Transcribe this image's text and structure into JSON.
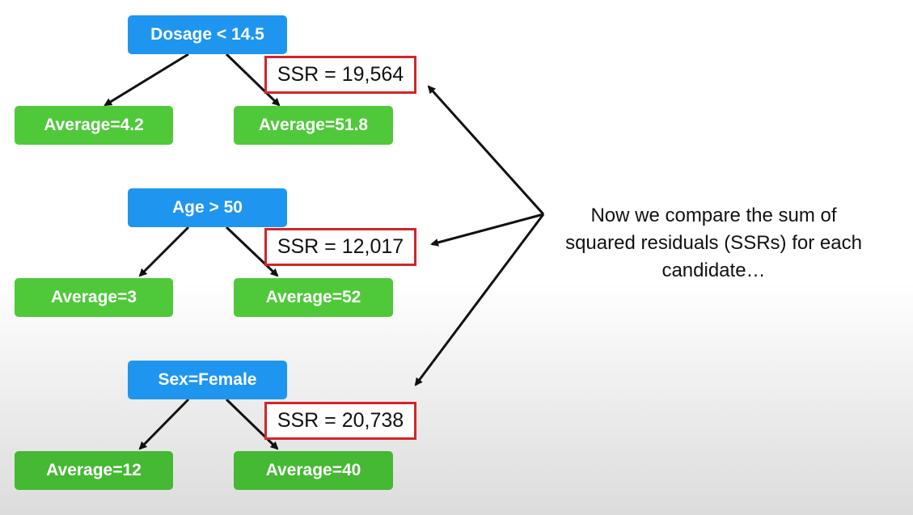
{
  "trees": [
    {
      "root": "Dosage < 14.5",
      "left_leaf": "Average=4.2",
      "right_leaf": "Average=51.8",
      "ssr": "SSR = 19,564"
    },
    {
      "root": "Age > 50",
      "left_leaf": "Average=3",
      "right_leaf": "Average=52",
      "ssr": "SSR = 12,017"
    },
    {
      "root": "Sex=Female",
      "left_leaf": "Average=12",
      "right_leaf": "Average=40",
      "ssr": "SSR = 20,738"
    }
  ],
  "annotation": {
    "line1": "Now we compare the sum of",
    "line2": "squared residuals (SSRs) for each",
    "line3": "candidate…"
  },
  "colors": {
    "split_node": "#1e96f0",
    "leaf_node": "#4fc93a",
    "ssr_border": "#d0262b",
    "arrow": "#111111"
  }
}
